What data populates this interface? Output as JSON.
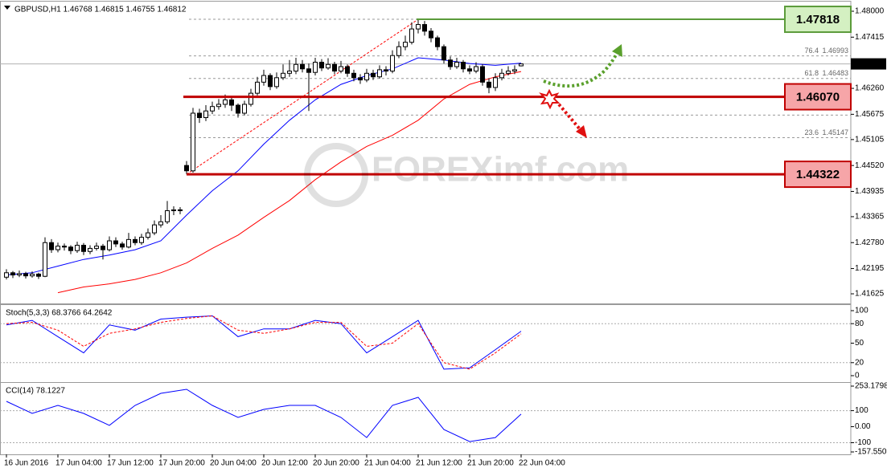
{
  "chart_data": [
    {
      "type": "candlestick",
      "title": "GBPUSD,H1  1.46768 1.46815 1.46755 1.46812",
      "xlim": [
        -1,
        131.25
      ],
      "ylim": [
        1.41408,
        1.48199
      ],
      "yticks": [
        {
          "value": 1.48,
          "label": "1.48000"
        },
        {
          "value": 1.47415,
          "label": "1.47415"
        },
        {
          "value": 1.4626,
          "label": "1.46260"
        },
        {
          "value": 1.45675,
          "label": "1.45675"
        },
        {
          "value": 1.45105,
          "label": "1.45105"
        },
        {
          "value": 1.4452,
          "label": "1.44520"
        },
        {
          "value": 1.43935,
          "label": "1.43935"
        },
        {
          "value": 1.43365,
          "label": "1.43365"
        },
        {
          "value": 1.4278,
          "label": "1.42780"
        },
        {
          "value": 1.42195,
          "label": "1.42195"
        },
        {
          "value": 1.41625,
          "label": "1.41625"
        }
      ],
      "open": [
        1.42,
        1.421,
        1.4205,
        1.4208,
        1.4203,
        1.4207,
        1.4202,
        1.4278,
        1.4262,
        1.427,
        1.4268,
        1.426,
        1.4272,
        1.4258,
        1.4265,
        1.427,
        1.4262,
        1.4282,
        1.4275,
        1.4268,
        1.4285,
        1.4278,
        1.429,
        1.43,
        1.4318,
        1.4325,
        1.435,
        1.4352,
        1.4452,
        1.444,
        1.457,
        1.456,
        1.4575,
        1.4585,
        1.459,
        1.46,
        1.4588,
        1.457,
        1.459,
        1.4615,
        1.464,
        1.4655,
        1.463,
        1.465,
        1.466,
        1.4665,
        1.468,
        1.467,
        1.4662,
        1.4685,
        1.4672,
        1.468,
        1.4665,
        1.4675,
        1.466,
        1.465,
        1.4645,
        1.466,
        1.4652,
        1.4668,
        1.4665,
        1.47,
        1.472,
        1.473,
        1.476,
        1.477,
        1.4755,
        1.474,
        1.472,
        1.469,
        1.4675,
        1.4685,
        1.467,
        1.4665,
        1.4675,
        1.464,
        1.4628,
        1.465,
        1.466,
        1.4665,
        1.46768
      ],
      "high": [
        1.4218,
        1.4214,
        1.4215,
        1.4212,
        1.4213,
        1.421,
        1.429,
        1.4286,
        1.4278,
        1.4276,
        1.4272,
        1.428,
        1.4277,
        1.4272,
        1.4278,
        1.4275,
        1.4292,
        1.429,
        1.428,
        1.43,
        1.4292,
        1.4298,
        1.431,
        1.4328,
        1.434,
        1.4372,
        1.436,
        1.4358,
        1.4462,
        1.4582,
        1.458,
        1.4588,
        1.4596,
        1.4602,
        1.4612,
        1.4606,
        1.4592,
        1.4598,
        1.4625,
        1.4652,
        1.4668,
        1.466,
        1.4662,
        1.468,
        1.469,
        1.4695,
        1.469,
        1.4682,
        1.4695,
        1.4692,
        1.4694,
        1.4686,
        1.4688,
        1.468,
        1.4668,
        1.4658,
        1.467,
        1.4668,
        1.4678,
        1.4676,
        1.4712,
        1.4732,
        1.4745,
        1.4775,
        1.47818,
        1.4778,
        1.4762,
        1.4745,
        1.4725,
        1.4698,
        1.4695,
        1.469,
        1.4678,
        1.4685,
        1.468,
        1.4648,
        1.466,
        1.467,
        1.4676,
        1.4678,
        1.46815
      ],
      "low": [
        1.4195,
        1.4198,
        1.42,
        1.4197,
        1.4199,
        1.4196,
        1.42,
        1.4255,
        1.4256,
        1.426,
        1.4252,
        1.4255,
        1.425,
        1.4252,
        1.426,
        1.424,
        1.4258,
        1.4268,
        1.4262,
        1.4265,
        1.4272,
        1.4273,
        1.4285,
        1.4295,
        1.4312,
        1.432,
        1.434,
        1.4342,
        1.44322,
        1.4436,
        1.4548,
        1.4552,
        1.4568,
        1.4578,
        1.4582,
        1.4575,
        1.456,
        1.4565,
        1.4585,
        1.461,
        1.4632,
        1.4622,
        1.4625,
        1.4645,
        1.4652,
        1.4658,
        1.4662,
        1.4575,
        1.4655,
        1.4665,
        1.4668,
        1.4658,
        1.466,
        1.4652,
        1.4642,
        1.4636,
        1.464,
        1.4645,
        1.4648,
        1.4655,
        1.466,
        1.4694,
        1.4712,
        1.4725,
        1.475,
        1.4745,
        1.473,
        1.4712,
        1.4682,
        1.4668,
        1.467,
        1.4662,
        1.4658,
        1.466,
        1.4632,
        1.4615,
        1.462,
        1.4644,
        1.4655,
        1.4658,
        1.46755
      ],
      "close": [
        1.421,
        1.4205,
        1.4208,
        1.4203,
        1.4207,
        1.4202,
        1.4278,
        1.4262,
        1.427,
        1.4268,
        1.426,
        1.4272,
        1.4258,
        1.4265,
        1.427,
        1.4262,
        1.4282,
        1.4275,
        1.4268,
        1.4285,
        1.4278,
        1.429,
        1.43,
        1.4318,
        1.4325,
        1.435,
        1.4352,
        1.435,
        1.444,
        1.457,
        1.456,
        1.4575,
        1.4585,
        1.459,
        1.46,
        1.4588,
        1.457,
        1.459,
        1.4615,
        1.464,
        1.4655,
        1.463,
        1.465,
        1.466,
        1.4665,
        1.468,
        1.467,
        1.4662,
        1.4685,
        1.4672,
        1.468,
        1.4665,
        1.4675,
        1.466,
        1.465,
        1.4645,
        1.466,
        1.4652,
        1.4668,
        1.4665,
        1.47,
        1.472,
        1.473,
        1.476,
        1.477,
        1.4755,
        1.474,
        1.472,
        1.469,
        1.4675,
        1.4685,
        1.467,
        1.4665,
        1.4675,
        1.464,
        1.4628,
        1.465,
        1.466,
        1.4665,
        1.4668,
        1.46812
      ],
      "up_color": "#ffffff",
      "down_color": "#000000",
      "series": [
        {
          "color": "#0000ff",
          "x": [
            0,
            4,
            8,
            12,
            16,
            20,
            24,
            28,
            32,
            36,
            40,
            44,
            48,
            52,
            56,
            60,
            64,
            68,
            72,
            76,
            80
          ],
          "values": [
            1.4205,
            1.421,
            1.4225,
            1.424,
            1.425,
            1.4262,
            1.4282,
            1.434,
            1.4395,
            1.444,
            1.45,
            1.4554,
            1.46,
            1.4635,
            1.4655,
            1.467,
            1.4695,
            1.469,
            1.4682,
            1.4678,
            1.4683
          ]
        },
        {
          "color": "#ff0000",
          "x": [
            0,
            4,
            8,
            12,
            16,
            20,
            24,
            28,
            32,
            36,
            40,
            44,
            48,
            52,
            56,
            60,
            64,
            68,
            72,
            76,
            80
          ],
          "values": [
            null,
            null,
            1.4165,
            1.4178,
            1.4185,
            1.4195,
            1.421,
            1.4232,
            1.4265,
            1.4295,
            1.4335,
            1.4373,
            1.442,
            1.446,
            1.4495,
            1.452,
            1.4554,
            1.4602,
            1.4635,
            1.4652,
            1.4664
          ]
        }
      ],
      "current_price": 1.46812,
      "fib_lines": [
        1.47818,
        1.46993,
        1.46483,
        1.4607,
        1.45657,
        1.45147
      ],
      "fib_labels": [
        {
          "level": 76.4,
          "price": 1.46993
        },
        {
          "level": 61.8,
          "price": 1.46483
        },
        {
          "level": 23.6,
          "price": 1.45147
        }
      ],
      "trendline": {
        "x": [
          28,
          64
        ],
        "y": [
          1.44322,
          1.47818
        ],
        "color": "#ff0000"
      },
      "levels": [
        {
          "price": 1.47818,
          "color": "#5b9b3a",
          "fill": "#d4f0c2"
        },
        {
          "price": 1.4607,
          "label": "1.46070",
          "color": "#c00000",
          "fill": "#f6a5a8"
        },
        {
          "price": 1.44322,
          "color": "#c00000",
          "fill": "#f6a5a8"
        }
      ],
      "watermark": "FOREXimf.com"
    },
    {
      "type": "line",
      "title": "Stoch(5,3,3) 68.3766 64.2642",
      "xlim": [
        -1,
        131.25
      ],
      "ylim": [
        -9.9,
        107.4
      ],
      "yticks": [
        100,
        80,
        50,
        20,
        0
      ],
      "levels": [
        80,
        20
      ],
      "x": [
        0,
        4,
        8,
        12,
        16,
        20,
        24,
        28,
        32,
        36,
        40,
        44,
        48,
        52,
        56,
        60,
        64,
        68,
        72,
        76,
        80
      ],
      "series": [
        {
          "color": "#0000ff",
          "values": [
            78,
            85,
            60,
            35,
            78,
            70,
            87,
            90,
            92,
            60,
            72,
            72,
            85,
            80,
            35,
            60,
            85,
            10,
            12,
            40,
            68.3766
          ]
        },
        {
          "color": "#ff0000",
          "style": "dashed",
          "values": [
            80,
            82,
            70,
            45,
            65,
            72,
            82,
            88,
            92,
            70,
            65,
            72,
            82,
            82,
            45,
            50,
            80,
            20,
            10,
            35,
            64.2642
          ]
        }
      ]
    },
    {
      "type": "line",
      "title": "CCI(14) 78.1227",
      "xlim": [
        -1,
        131.25
      ],
      "ylim": [
        -172.6,
        268.2
      ],
      "yticks": [
        253.1798,
        100,
        {
          "value": 0,
          "label": "0.00"
        },
        -100,
        -157.5509
      ],
      "levels": [
        100,
        -100
      ],
      "x": [
        0,
        4,
        8,
        12,
        16,
        20,
        24,
        28,
        32,
        36,
        40,
        44,
        48,
        52,
        56,
        60,
        64,
        68,
        72,
        76,
        80
      ],
      "series": [
        {
          "color": "#0000ff",
          "values": [
            158,
            83,
            133,
            83,
            8,
            133,
            208,
            233,
            133,
            58,
            108,
            133,
            133,
            58,
            -68,
            133,
            183,
            -18,
            -93,
            -68,
            78.1227
          ]
        }
      ],
      "xticks": [
        {
          "value": 0,
          "label": "16 Jun 2016"
        },
        {
          "value": 8,
          "label": "17 Jun 04:00"
        },
        {
          "value": 16,
          "label": "17 Jun 12:00"
        },
        {
          "value": 24,
          "label": "17 Jun 20:00"
        },
        {
          "value": 32,
          "label": "20 Jun 04:00"
        },
        {
          "value": 40,
          "label": "20 Jun 12:00"
        },
        {
          "value": 48,
          "label": "20 Jun 20:00"
        },
        {
          "value": 56,
          "label": "21 Jun 04:00"
        },
        {
          "value": 64,
          "label": "21 Jun 12:00"
        },
        {
          "value": 72,
          "label": "21 Jun 20:00"
        },
        {
          "value": 80,
          "label": "22 Jun 04:00"
        }
      ]
    }
  ]
}
